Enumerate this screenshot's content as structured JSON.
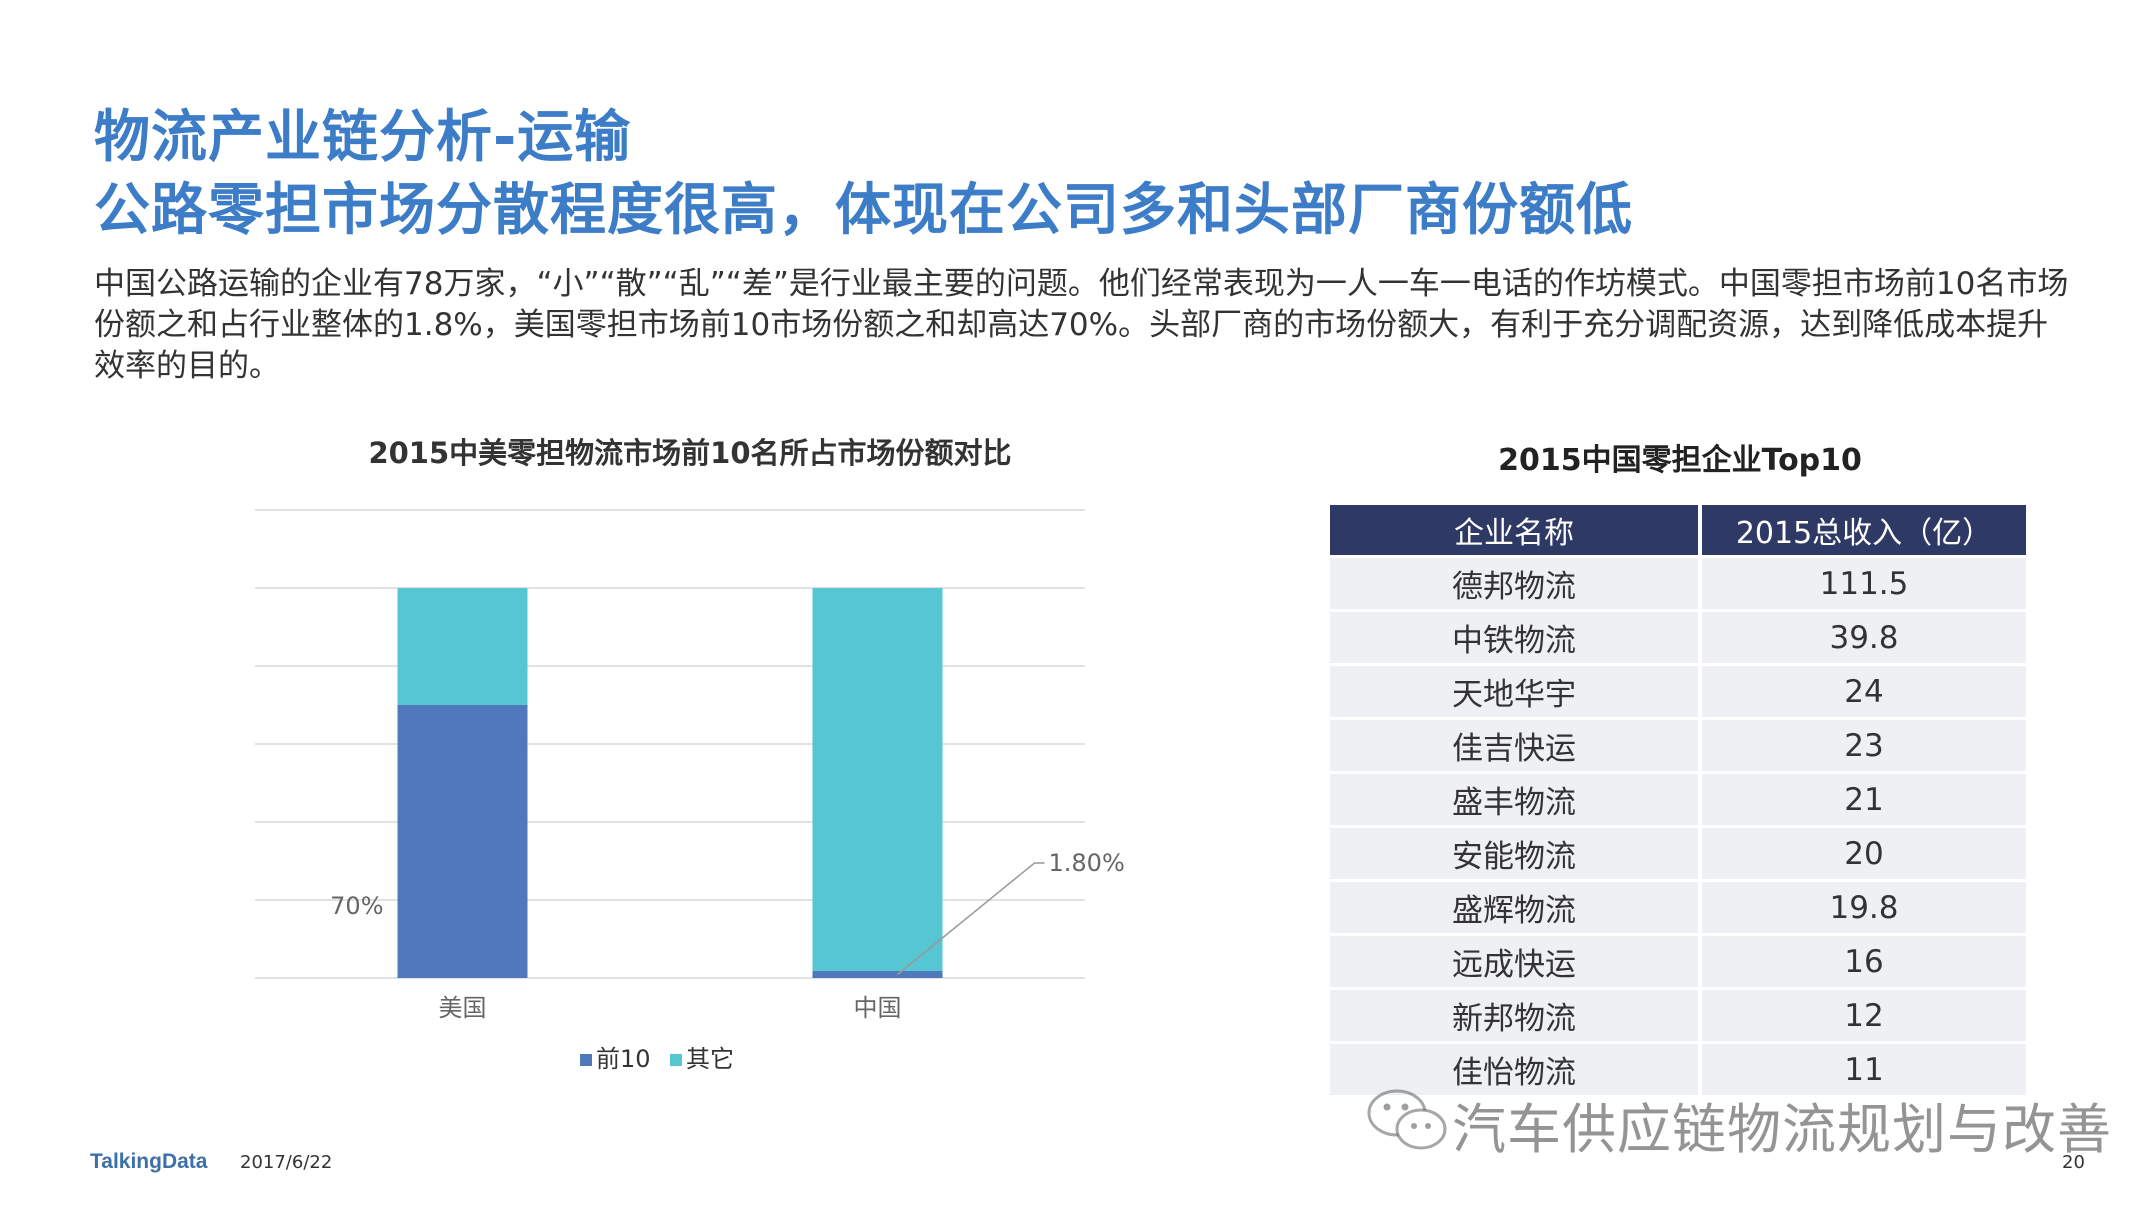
{
  "title": {
    "line1": "物流产业链分析-运输",
    "line2": "公路零担市场分散程度很高，体现在公司多和头部厂商份额低"
  },
  "body_text": "中国公路运输的企业有78万家，“小”“散”“乱”“差”是行业最主要的问题。他们经常表现为一人一车一电话的作坊模式。中国零担市场前10名市场份额之和占行业整体的1.8%，美国零担市场前10市场份额之和却高达70%。头部厂商的市场份额大，有利于充分调配资源，达到降低成本提升效率的目的。",
  "chart_data": {
    "type": "bar",
    "stacked": true,
    "percent": true,
    "title": "2015中美零担物流市场前10名所占市场份额对比",
    "categories": [
      "美国",
      "中国"
    ],
    "series": [
      {
        "name": "前10",
        "values": [
          70,
          1.8
        ],
        "color": "#4f79bc"
      },
      {
        "name": "其它",
        "values": [
          30,
          98.2
        ],
        "color": "#56c6d3"
      }
    ],
    "data_labels": [
      "70%",
      "1.80%"
    ],
    "ylim": [
      0,
      100
    ],
    "grid": true,
    "legend": "bottom"
  },
  "table": {
    "title": "2015中国零担企业Top10",
    "headers": [
      "企业名称",
      "2015总收入（亿）"
    ],
    "rows": [
      [
        "德邦物流",
        "111.5"
      ],
      [
        "中铁物流",
        "39.8"
      ],
      [
        "天地华宇",
        "24"
      ],
      [
        "佳吉快运",
        "23"
      ],
      [
        "盛丰物流",
        "21"
      ],
      [
        "安能物流",
        "20"
      ],
      [
        "盛辉物流",
        "19.8"
      ],
      [
        "远成快运",
        "16"
      ],
      [
        "新邦物流",
        "12"
      ],
      [
        "佳怡物流",
        "11"
      ]
    ]
  },
  "watermark": "汽车供应链物流规划与改善",
  "footer": {
    "brand": "TalkingData",
    "date": "2017/6/22",
    "page": "20"
  }
}
